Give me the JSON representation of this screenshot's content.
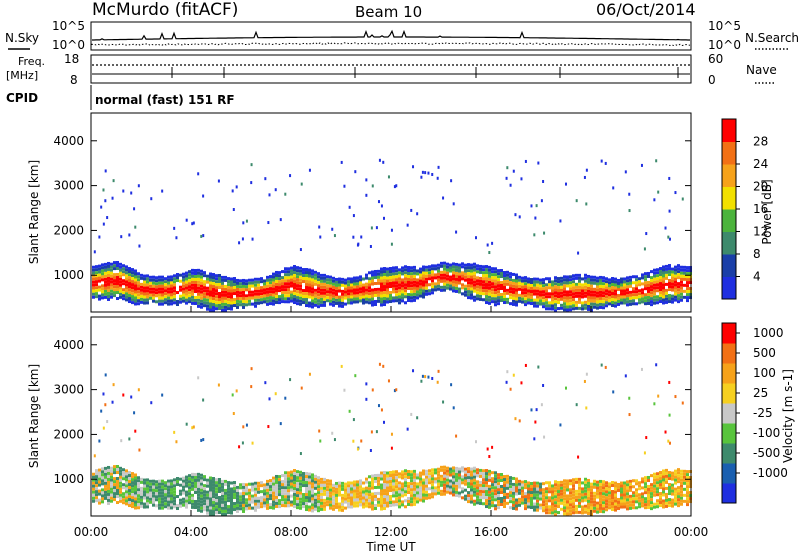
{
  "header": {
    "station": "McMurdo (fitACF)",
    "beam": "Beam 10",
    "date": "06/Oct/2014"
  },
  "noise_panel": {
    "left_label": "N.Sky",
    "right_label": "N.Search",
    "top_tick": "10^5",
    "bottom_tick": "10^0"
  },
  "freq_panel": {
    "left_label_1": "Freq.",
    "left_label_2": "[MHz]",
    "left_ticks": [
      "18",
      "8"
    ],
    "right_label": "Nave",
    "right_ticks": [
      "60",
      "0"
    ]
  },
  "cpid_panel": {
    "label": "CPID",
    "text": "normal (fast) 151 RF"
  },
  "chart_data": [
    {
      "type": "heatmap",
      "name": "power",
      "ylabel": "Slant Range [km]",
      "xlabel": "",
      "yticks": [
        "1000",
        "2000",
        "3000",
        "4000"
      ],
      "ylim": [
        180,
        4620
      ],
      "colorbar": {
        "label": "Power [dB]",
        "ticks": [
          "4",
          "8",
          "12",
          "16",
          "20",
          "24",
          "28"
        ],
        "colors": [
          "#1f2fe0",
          "#1a3fa8",
          "#3d8a6c",
          "#4bb33c",
          "#f2e000",
          "#f6a21a",
          "#f27015",
          "#ff0000"
        ]
      },
      "band_center_km": [
        [
          0,
          850
        ],
        [
          1,
          900
        ],
        [
          2,
          700
        ],
        [
          3,
          680
        ],
        [
          4,
          760
        ],
        [
          5,
          620
        ],
        [
          6,
          600
        ],
        [
          7,
          680
        ],
        [
          8,
          820
        ],
        [
          9,
          700
        ],
        [
          10,
          640
        ],
        [
          11,
          720
        ],
        [
          12,
          800
        ],
        [
          13,
          840
        ],
        [
          14,
          1000
        ],
        [
          15,
          900
        ],
        [
          16,
          780
        ],
        [
          17,
          700
        ],
        [
          18,
          620
        ],
        [
          19,
          600
        ],
        [
          20,
          620
        ],
        [
          21,
          640
        ],
        [
          22,
          700
        ],
        [
          23,
          820
        ],
        [
          24,
          840
        ]
      ]
    },
    {
      "type": "heatmap",
      "name": "velocity",
      "ylabel": "Slant Range [km]",
      "xlabel": "Time UT",
      "yticks": [
        "1000",
        "2000",
        "3000",
        "4000"
      ],
      "ylim": [
        180,
        4620
      ],
      "colorbar": {
        "label": "Velocity [m s-1]",
        "ticks": [
          "1000",
          "500",
          "100",
          "25",
          "-25",
          "-100",
          "-500",
          "-1000"
        ],
        "colors": [
          "#1f2fe0",
          "#1a5fb0",
          "#3d8a6c",
          "#58c43c",
          "#c8c8c8",
          "#f6d020",
          "#f6a21a",
          "#f27015",
          "#ff0000"
        ]
      }
    }
  ],
  "time_axis": {
    "label": "Time UT",
    "ticks": [
      "00:00",
      "04:00",
      "08:00",
      "12:00",
      "16:00",
      "20:00",
      "00:00"
    ]
  }
}
